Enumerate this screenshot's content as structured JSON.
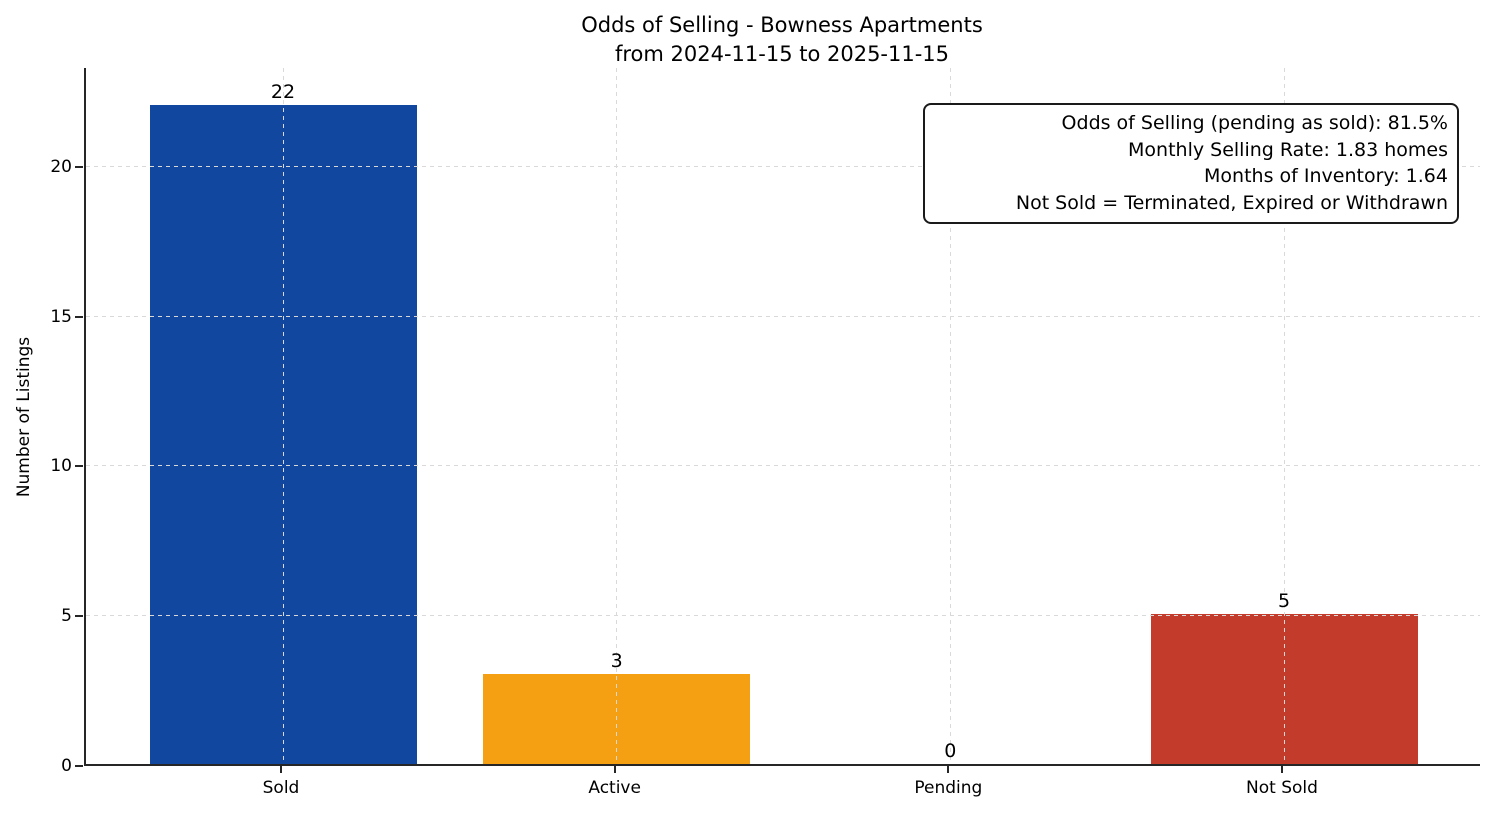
{
  "chart_data": {
    "type": "bar",
    "title": "Odds of Selling - Bowness Apartments",
    "subtitle": "from 2024-11-15 to 2025-11-15",
    "categories": [
      "Sold",
      "Active",
      "Pending",
      "Not Sold"
    ],
    "values": [
      22,
      3,
      0,
      5
    ],
    "bar_colors": [
      "#11479E",
      "#F4A012",
      null,
      "#C23B2B"
    ],
    "xlabel": "",
    "ylabel": "Number of Listings",
    "yticks": [
      0,
      5,
      10,
      15,
      20
    ],
    "ylim": [
      0,
      23.3
    ],
    "grid": true,
    "grid_color": "#d9d9d9",
    "axis_color": "#262626",
    "legend_position": "none",
    "annotation": {
      "lines": [
        "Odds of Selling (pending as sold): 81.5%",
        "Monthly Selling Rate: 1.83 homes",
        "Months of Inventory: 1.64",
        "Not Sold = Terminated, Expired or Withdrawn"
      ]
    }
  }
}
